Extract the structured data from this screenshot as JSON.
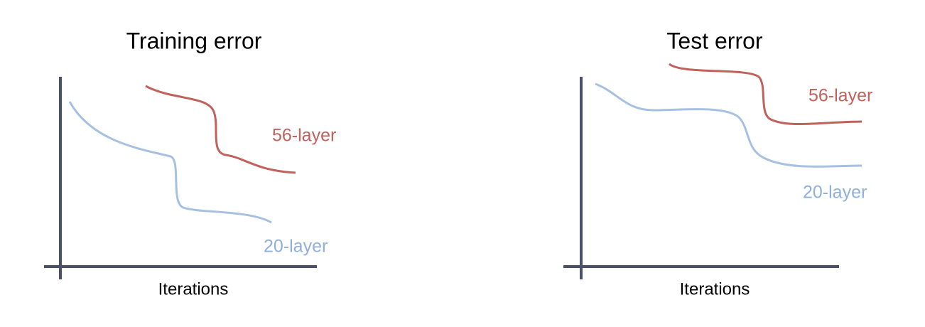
{
  "panels": [
    {
      "title": "Training error",
      "x_label": "Iterations",
      "curves": [
        {
          "label": "56-layer"
        },
        {
          "label": "20-layer"
        }
      ]
    },
    {
      "title": "Test error",
      "x_label": "Iterations",
      "curves": [
        {
          "label": "56-layer"
        },
        {
          "label": "20-layer"
        }
      ]
    }
  ]
}
